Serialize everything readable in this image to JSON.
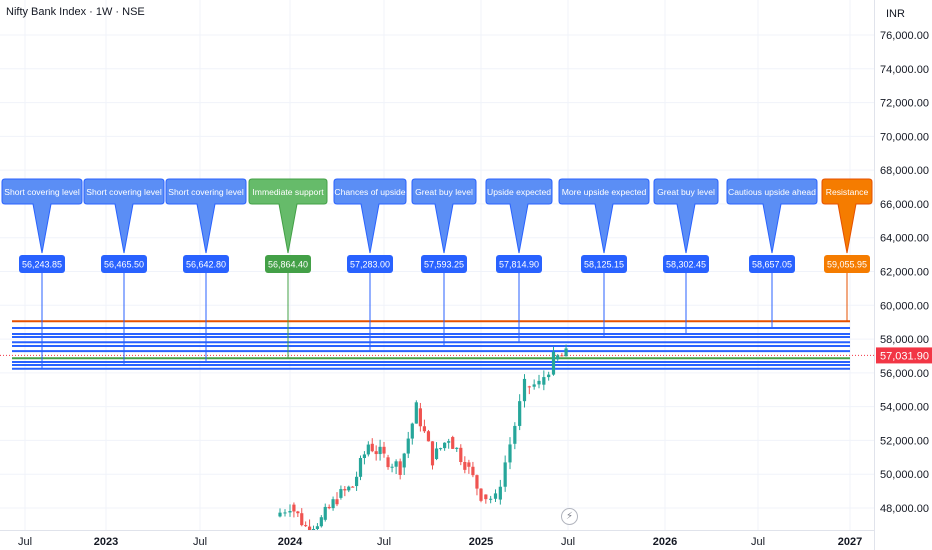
{
  "header": {
    "title": "Nifty Bank Index · 1W · NSE",
    "currency": "INR"
  },
  "price_axis": {
    "current_price": "57,031.90"
  },
  "colors": {
    "up": "#26a69a",
    "down": "#ef5350",
    "level_blue": "#2962ff",
    "callout_blue": "#5b8ef5",
    "callout_green": "#66bb6a",
    "callout_orange": "#f57c00",
    "resistance_line": "#e65100",
    "support_line": "#43a047",
    "price_label": "#f23645"
  },
  "icons": {
    "flash": "lightning-icon"
  },
  "chart_data": {
    "type": "candlestick",
    "title": "Nifty Bank Index · 1W · NSE",
    "xlabel": "",
    "ylabel": "",
    "ylim": [
      47000,
      76600
    ],
    "y_ticks": [
      "76,000.00",
      "74,000.00",
      "72,000.00",
      "70,000.00",
      "68,000.00",
      "66,000.00",
      "64,000.00",
      "62,000.00",
      "60,000.00",
      "58,000.00",
      "56,000.00",
      "54,000.00",
      "52,000.00",
      "50,000.00",
      "48,000.00"
    ],
    "y_tick_values": [
      76000,
      74000,
      72000,
      70000,
      68000,
      66000,
      64000,
      62000,
      60000,
      58000,
      56000,
      54000,
      52000,
      50000,
      48000
    ],
    "x_ticks": [
      {
        "label": "Jul",
        "bold": false,
        "date": "2022-07"
      },
      {
        "label": "2023",
        "bold": true,
        "date": "2023-01"
      },
      {
        "label": "Jul",
        "bold": false,
        "date": "2023-07"
      },
      {
        "label": "2024",
        "bold": true,
        "date": "2024-01"
      },
      {
        "label": "Jul",
        "bold": false,
        "date": "2024-07"
      },
      {
        "label": "2025",
        "bold": true,
        "date": "2025-01"
      },
      {
        "label": "Jul",
        "bold": false,
        "date": "2025-07"
      },
      {
        "label": "2026",
        "bold": true,
        "date": "2026-01"
      },
      {
        "label": "Jul",
        "bold": false,
        "date": "2026-07"
      },
      {
        "label": "2027",
        "bold": true,
        "date": "2027-01"
      }
    ],
    "last_price": 57031.9,
    "candles_approx_close": [
      {
        "date": "2023-12",
        "close": 47500
      },
      {
        "date": "2024-01",
        "close": 48200
      },
      {
        "date": "2024-02",
        "close": 46900
      },
      {
        "date": "2024-03",
        "close": 47300
      },
      {
        "date": "2024-04",
        "close": 48600
      },
      {
        "date": "2024-05",
        "close": 49300
      },
      {
        "date": "2024-06",
        "close": 51800
      },
      {
        "date": "2024-07",
        "close": 51000
      },
      {
        "date": "2024-08",
        "close": 50400
      },
      {
        "date": "2024-09",
        "close": 53900
      },
      {
        "date": "2024-10",
        "close": 50900
      },
      {
        "date": "2024-11",
        "close": 52200
      },
      {
        "date": "2024-12",
        "close": 50700
      },
      {
        "date": "2025-01",
        "close": 48800
      },
      {
        "date": "2025-02",
        "close": 48500
      },
      {
        "date": "2025-03",
        "close": 51800
      },
      {
        "date": "2025-04",
        "close": 55200
      },
      {
        "date": "2025-05",
        "close": 55300
      },
      {
        "date": "2025-06",
        "close": 56800
      },
      {
        "date": "2025-06-27",
        "close": 57031.9
      }
    ],
    "levels": [
      {
        "label": "Short covering level",
        "value": "56,243.85",
        "price": 56243.85,
        "style": "blue"
      },
      {
        "label": "Short covering level",
        "value": "56,465.50",
        "price": 56465.5,
        "style": "blue"
      },
      {
        "label": "Short covering level",
        "value": "56,642.80",
        "price": 56642.8,
        "style": "blue"
      },
      {
        "label": "Immediate support",
        "value": "56,864.40",
        "price": 56864.4,
        "style": "green"
      },
      {
        "label": "Chances of upside",
        "value": "57,283.00",
        "price": 57283.0,
        "style": "blue"
      },
      {
        "label": "Great buy level",
        "value": "57,593.25",
        "price": 57593.25,
        "style": "blue"
      },
      {
        "label": "Upside expected",
        "value": "57,814.90",
        "price": 57814.9,
        "style": "blue"
      },
      {
        "label": "More upside expected",
        "value": "58,125.15",
        "price": 58125.15,
        "style": "blue"
      },
      {
        "label": "Great buy level",
        "value": "58,302.45",
        "price": 58302.45,
        "style": "blue"
      },
      {
        "label": "Cautious upside ahead",
        "value": "58,657.05",
        "price": 58657.05,
        "style": "blue"
      },
      {
        "label": "Resistance",
        "value": "59,055.95",
        "price": 59055.95,
        "style": "orange"
      }
    ]
  }
}
